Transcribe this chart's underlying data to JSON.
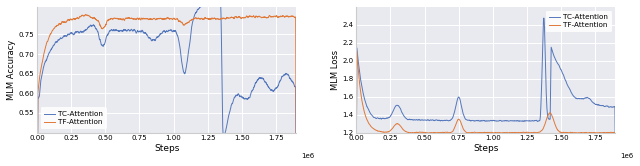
{
  "fig_width": 6.4,
  "fig_height": 1.66,
  "dpi": 100,
  "bg_color": "#e8eaf0",
  "tc_color": "#5577bb",
  "tf_color": "#e07838",
  "left_ylabel": "MLM Accuracy",
  "right_ylabel": "MLM Loss",
  "xlabel": "Steps",
  "legend_tc": "TC-Attention",
  "legend_tf": "TF-Attention",
  "left_ylim": [
    0.5,
    0.82
  ],
  "right_ylim": [
    1.2,
    2.6
  ],
  "left_yticks": [
    0.55,
    0.6,
    0.65,
    0.7,
    0.75
  ],
  "right_yticks": [
    1.2,
    1.4,
    1.6,
    1.8,
    2.0,
    2.2,
    2.4
  ],
  "xlim_left": [
    0,
    1900000.0
  ],
  "xlim_right": [
    0,
    1900000.0
  ],
  "left_xticks": [
    0,
    250000.0,
    500000.0,
    750000.0,
    1000000.0,
    1250000.0,
    1500000.0,
    1750000.0
  ],
  "right_xticks": [
    0,
    250000.0,
    500000.0,
    750000.0,
    1000000.0,
    1250000.0,
    1500000.0,
    1750000.0
  ],
  "left_xticklabels": [
    "0.00",
    "0.25",
    "0.50",
    "0.75",
    "1.00",
    "1.25",
    "1.50",
    "1.75"
  ],
  "right_xticklabels": [
    "0.00",
    "0.25",
    "0.50",
    "0.75",
    "1.00",
    "1.25",
    "1.50",
    "1.75"
  ]
}
